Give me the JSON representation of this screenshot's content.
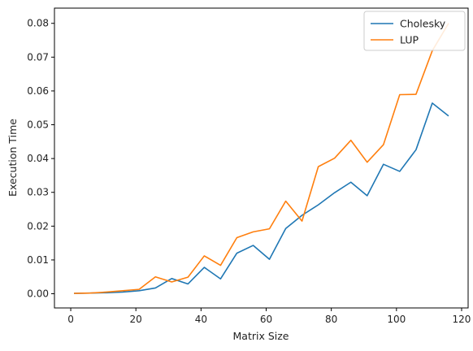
{
  "chart_data": {
    "type": "line",
    "title": "",
    "xlabel": "Matrix Size",
    "ylabel": "Execution Time",
    "xlim": [
      -5,
      122
    ],
    "ylim": [
      -0.0042,
      0.0845
    ],
    "xticks": [
      0,
      20,
      40,
      60,
      80,
      100,
      120
    ],
    "xtick_labels": [
      "0",
      "20",
      "40",
      "60",
      "80",
      "100",
      "120"
    ],
    "yticks": [
      0.0,
      0.01,
      0.02,
      0.03,
      0.04,
      0.05,
      0.06,
      0.07,
      0.08
    ],
    "ytick_labels": [
      "0.00",
      "0.01",
      "0.02",
      "0.03",
      "0.04",
      "0.05",
      "0.06",
      "0.07",
      "0.08"
    ],
    "grid": false,
    "legend_position": "upper-right",
    "x": [
      1,
      6,
      11,
      16,
      21,
      26,
      31,
      36,
      41,
      46,
      51,
      56,
      61,
      66,
      71,
      76,
      81,
      86,
      91,
      96,
      101,
      106,
      111,
      116
    ],
    "series": [
      {
        "name": "Cholesky",
        "color": "#1f77b4",
        "values": [
          0.0001,
          0.0002,
          0.0003,
          0.0005,
          0.0009,
          0.0017,
          0.0045,
          0.0029,
          0.0078,
          0.0044,
          0.012,
          0.0143,
          0.0102,
          0.0193,
          0.0232,
          0.0263,
          0.0299,
          0.033,
          0.029,
          0.0383,
          0.0362,
          0.0426,
          0.0564,
          0.0526
        ]
      },
      {
        "name": "LUP",
        "color": "#ff7f0e",
        "values": [
          0.0001,
          0.0002,
          0.0005,
          0.0009,
          0.0013,
          0.005,
          0.0035,
          0.0049,
          0.0112,
          0.0084,
          0.0166,
          0.0183,
          0.0192,
          0.0274,
          0.0215,
          0.0376,
          0.0401,
          0.0454,
          0.0389,
          0.0441,
          0.0589,
          0.059,
          0.0719,
          0.08
        ]
      }
    ]
  }
}
